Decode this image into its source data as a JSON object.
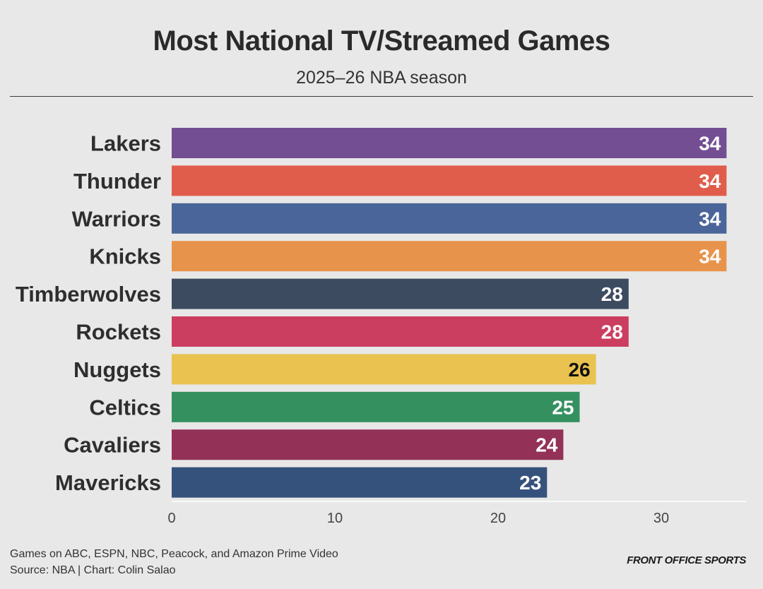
{
  "chart_data": {
    "type": "bar",
    "orientation": "horizontal",
    "title": "Most National TV/Streamed Games",
    "subtitle": "2025–26 NBA season",
    "categories": [
      "Lakers",
      "Thunder",
      "Warriors",
      "Knicks",
      "Timberwolves",
      "Rockets",
      "Nuggets",
      "Celtics",
      "Cavaliers",
      "Mavericks"
    ],
    "values": [
      34,
      34,
      34,
      34,
      28,
      28,
      26,
      25,
      24,
      23
    ],
    "colors": [
      "#734e93",
      "#e05d4b",
      "#4a6599",
      "#e8934b",
      "#3d4b61",
      "#cc3e60",
      "#e9c250",
      "#359060",
      "#933256",
      "#35527c"
    ],
    "label_colors": [
      "#ffffff",
      "#ffffff",
      "#ffffff",
      "#ffffff",
      "#ffffff",
      "#ffffff",
      "#111111",
      "#ffffff",
      "#ffffff",
      "#ffffff"
    ],
    "xlim": [
      0,
      35
    ],
    "xticks": [
      0,
      10,
      20,
      30
    ],
    "xlabel": "",
    "ylabel": "",
    "grid": false,
    "legend": "none"
  },
  "footer": {
    "note": "Games on ABC, ESPN, NBC, Peacock, and Amazon Prime Video",
    "source": "Source: NBA | Chart: Colin Salao",
    "brand": "FRONT OFFICE SPORTS"
  }
}
